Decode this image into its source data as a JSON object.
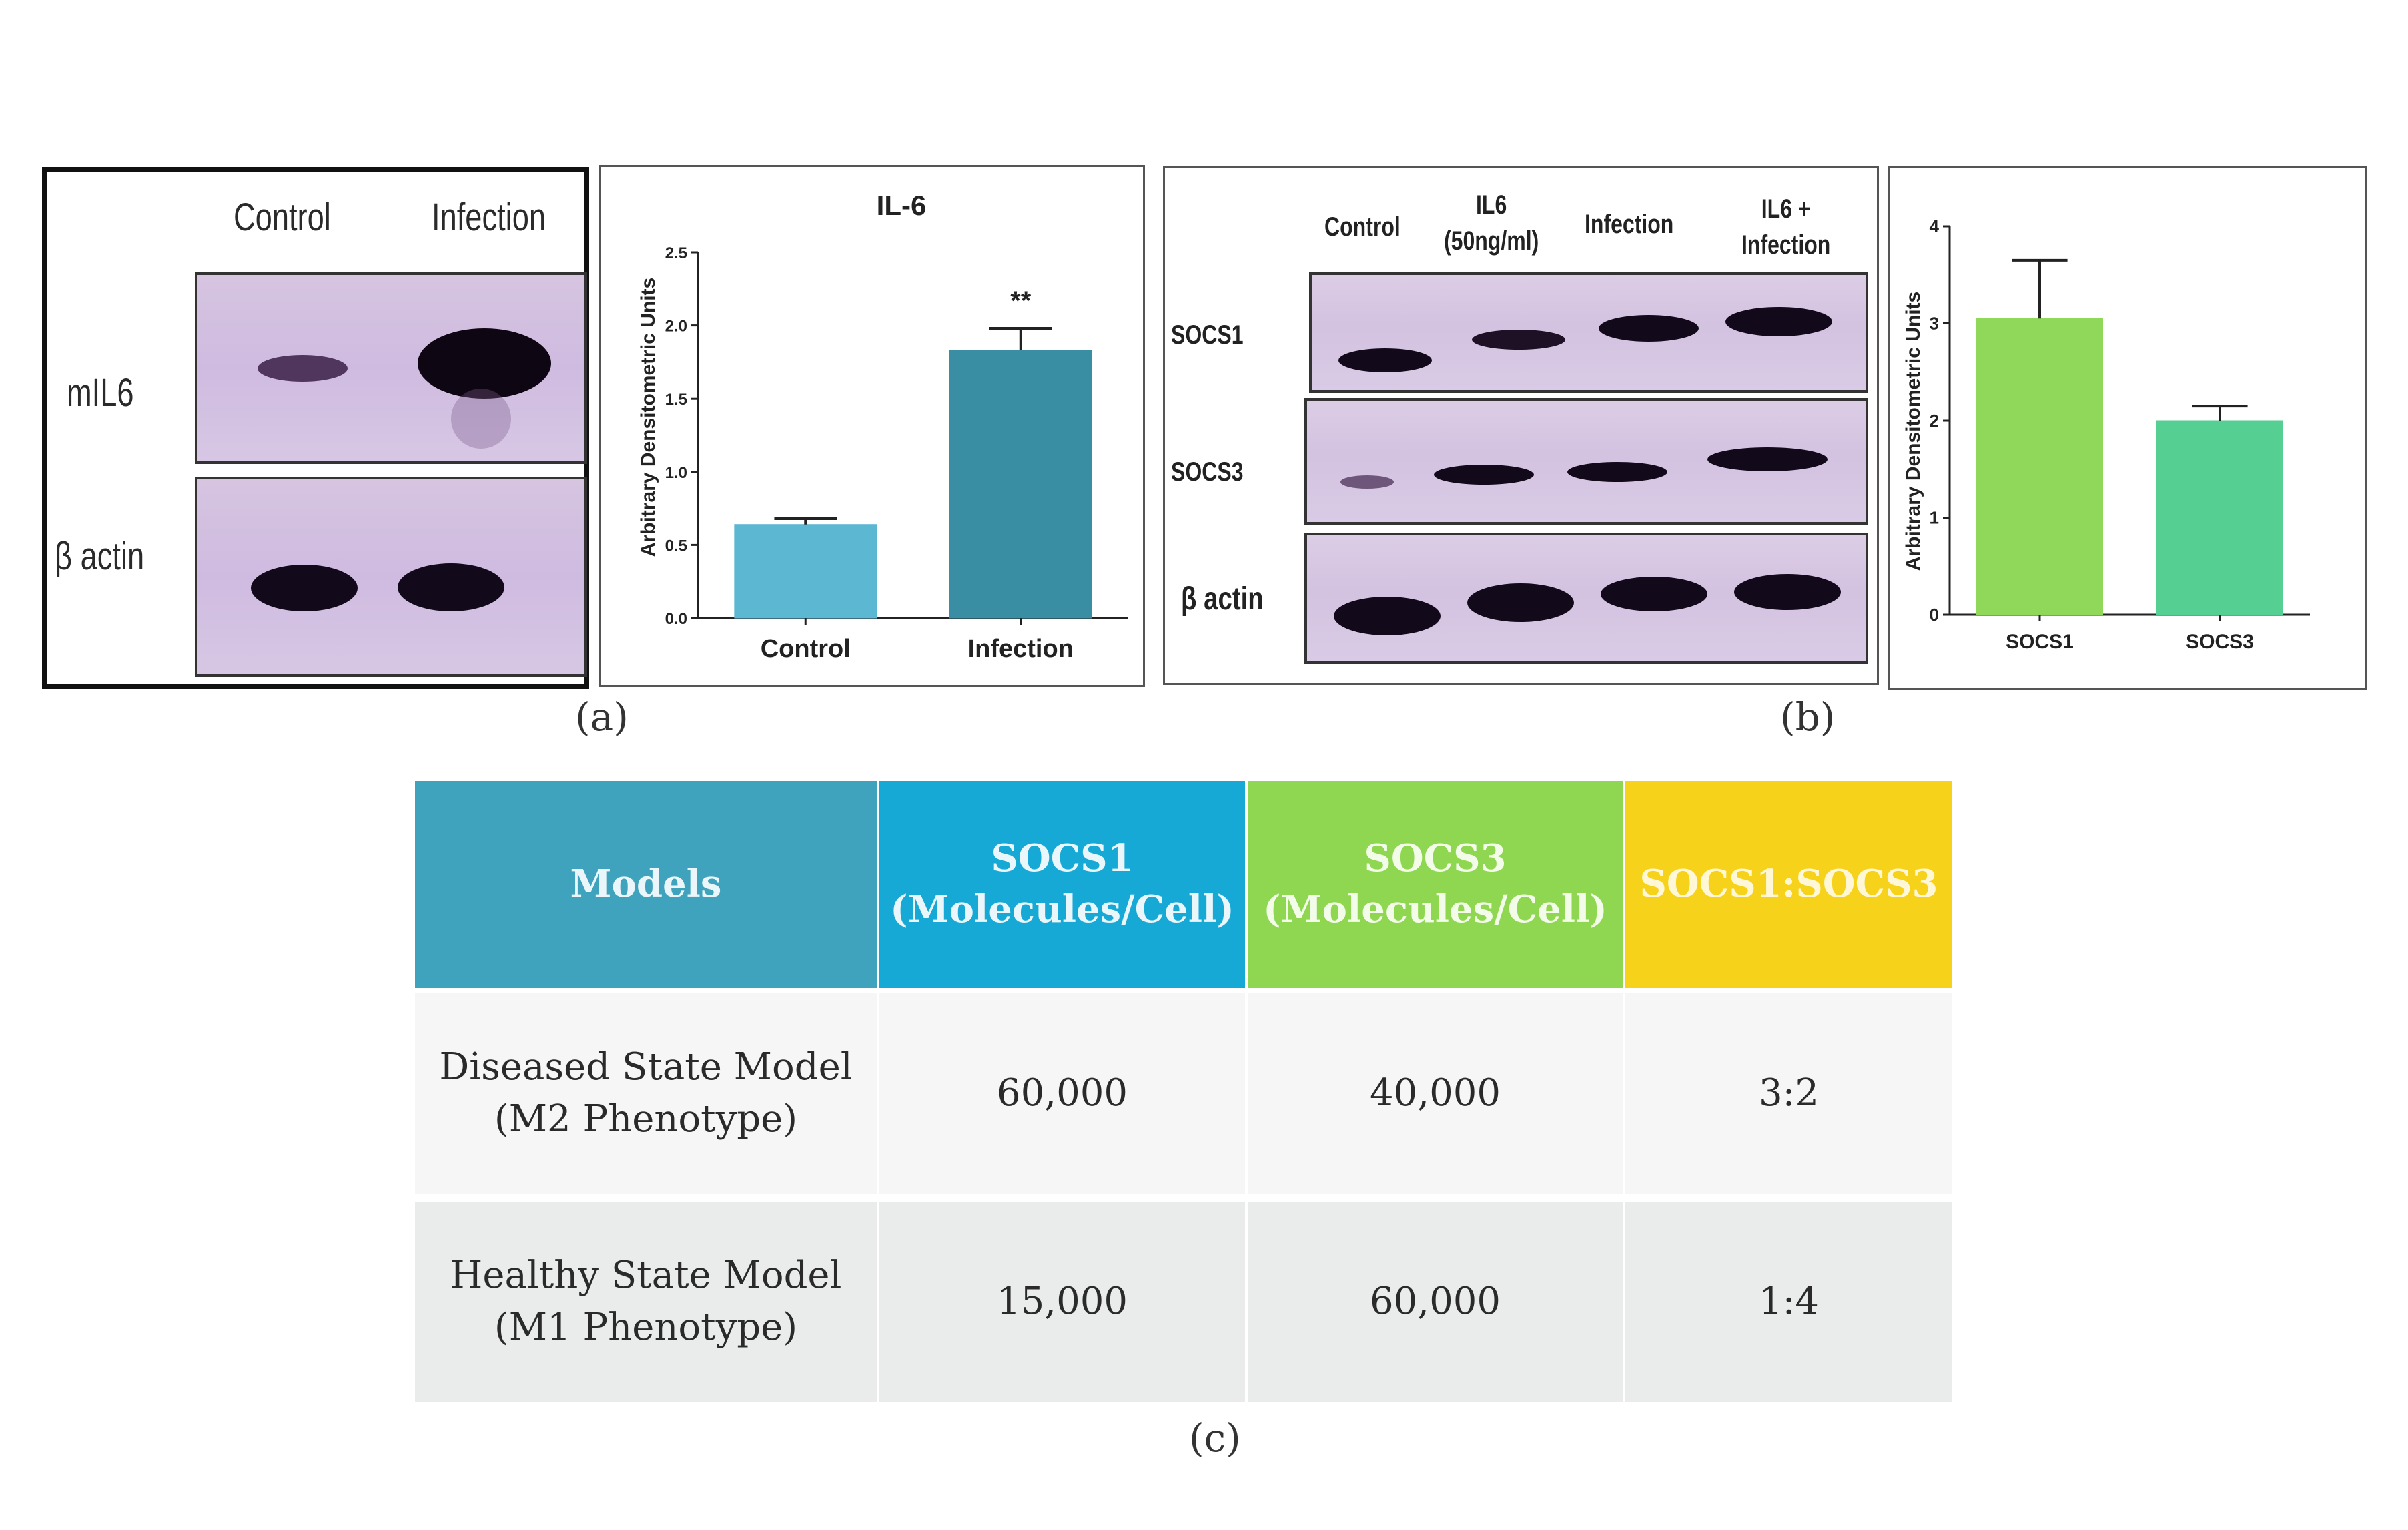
{
  "panel_a": {
    "blot": {
      "lanes": [
        "Control",
        "Infection"
      ],
      "rows": [
        "mIL6",
        "β actin"
      ]
    },
    "letter": "(a)"
  },
  "chart_data": [
    {
      "type": "bar",
      "title": "IL-6",
      "ylabel": "Arbitrary Densitometric Units",
      "categories": [
        "Control",
        "Infection"
      ],
      "values": [
        0.64,
        1.83
      ],
      "errors": [
        0.04,
        0.15
      ],
      "ylim": [
        0,
        2.5
      ],
      "yticks": [
        "0.0",
        "0.5",
        "1.0",
        "1.5",
        "2.0",
        "2.5"
      ],
      "annotation": "**",
      "colors": [
        "#5bb7d2",
        "#3a8ea3"
      ]
    },
    {
      "type": "bar",
      "ylabel": "Arbitrary Densitometric Units",
      "categories": [
        "SOCS1",
        "SOCS3"
      ],
      "values": [
        3.05,
        2.0
      ],
      "errors": [
        0.6,
        0.15
      ],
      "ylim": [
        0,
        4
      ],
      "yticks": [
        "0",
        "1",
        "2",
        "3",
        "4"
      ],
      "colors": [
        "#8fd85a",
        "#55cf92"
      ]
    }
  ],
  "panel_b": {
    "blot": {
      "lanes": [
        "Control",
        "IL6\n(50ng/ml)",
        "Infection",
        "IL6 +\nInfection"
      ],
      "rows": [
        "SOCS1",
        "SOCS3",
        "β actin"
      ]
    },
    "letter": "(b)"
  },
  "panel_c": {
    "letter": "(c)",
    "headers": [
      {
        "text": "Models",
        "color": "#3fa3bd"
      },
      {
        "text": "SOCS1\n(Molecules/Cell)",
        "color": "#17a9d6"
      },
      {
        "text": "SOCS3\n(Molecules/Cell)",
        "color": "#8fd651"
      },
      {
        "text": "SOCS1:SOCS3",
        "color": "#f7d21a"
      }
    ],
    "rows": [
      [
        "Diseased State Model\n(M2 Phenotype)",
        "60,000",
        "40,000",
        "3:2"
      ],
      [
        "Healthy State Model\n(M1 Phenotype)",
        "15,000",
        "60,000",
        "1:4"
      ]
    ]
  }
}
